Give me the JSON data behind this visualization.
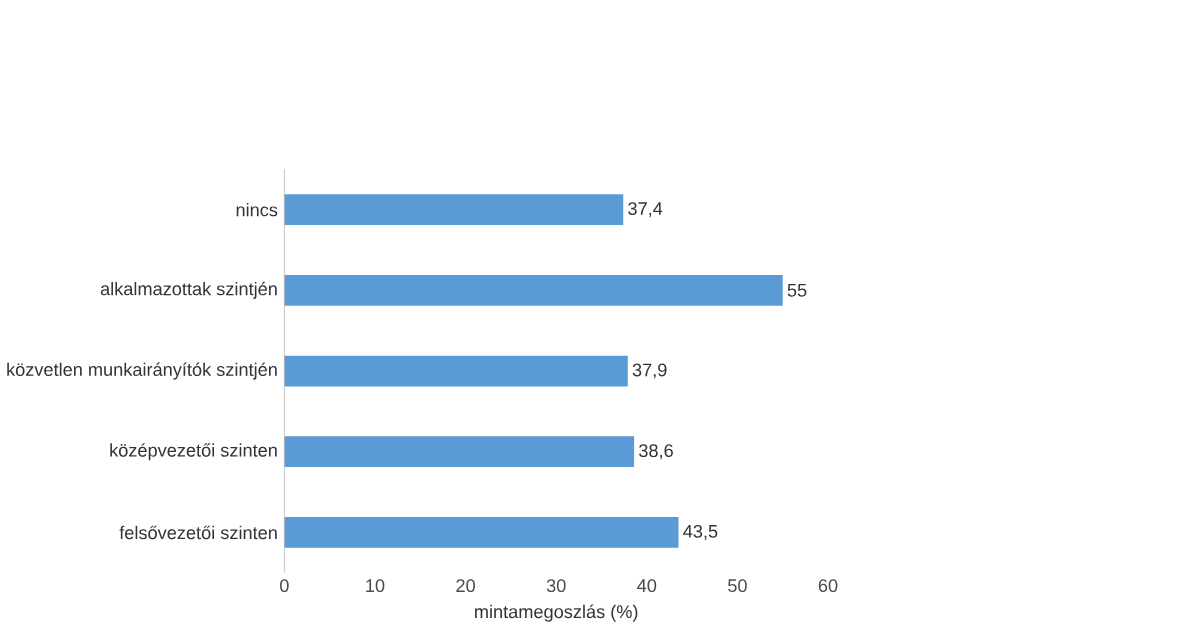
{
  "chart_data": {
    "type": "bar",
    "orientation": "horizontal",
    "xlabel": "mintamegoszlás (%)",
    "categories": [
      "nincs",
      "alkalmazottak szintjén",
      "közvetlen munkairányítók szintjén",
      "középvezetői szinten",
      "felsővezetői szinten"
    ],
    "values": [
      37.4,
      55,
      37.9,
      38.6,
      43.5
    ],
    "value_labels": [
      "37,4",
      "55",
      "37,9",
      "38,6",
      "43,5"
    ],
    "color": "#5b9bd5",
    "xlim": [
      0,
      60
    ],
    "xticks": [
      0,
      10,
      20,
      30,
      40,
      50,
      60
    ]
  }
}
